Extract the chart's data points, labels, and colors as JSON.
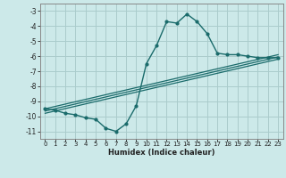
{
  "xlabel": "Humidex (Indice chaleur)",
  "bg_color": "#cce9e9",
  "grid_color": "#aacccc",
  "line_color": "#1a6b6b",
  "xlim": [
    -0.5,
    23.5
  ],
  "ylim": [
    -11.5,
    -2.5
  ],
  "yticks": [
    -3,
    -4,
    -5,
    -6,
    -7,
    -8,
    -9,
    -10,
    -11
  ],
  "xticks": [
    0,
    1,
    2,
    3,
    4,
    5,
    6,
    7,
    8,
    9,
    10,
    11,
    12,
    13,
    14,
    15,
    16,
    17,
    18,
    19,
    20,
    21,
    22,
    23
  ],
  "main_x": [
    0,
    1,
    2,
    3,
    4,
    5,
    6,
    7,
    8,
    9,
    10,
    11,
    12,
    13,
    14,
    15,
    16,
    17,
    18,
    19,
    20,
    21,
    22,
    23
  ],
  "main_y": [
    -9.5,
    -9.6,
    -9.8,
    -9.9,
    -10.1,
    -10.2,
    -10.8,
    -11.0,
    -10.5,
    -9.3,
    -6.5,
    -5.3,
    -3.7,
    -3.8,
    -3.2,
    -3.7,
    -4.5,
    -5.8,
    -5.9,
    -5.9,
    -6.0,
    -6.1,
    -6.1,
    -6.1
  ],
  "line1_x": [
    0,
    23
  ],
  "line1_y": [
    -9.5,
    -5.9
  ],
  "line2_x": [
    0,
    23
  ],
  "line2_y": [
    -9.65,
    -6.05
  ],
  "line3_x": [
    0,
    23
  ],
  "line3_y": [
    -9.8,
    -6.2
  ]
}
